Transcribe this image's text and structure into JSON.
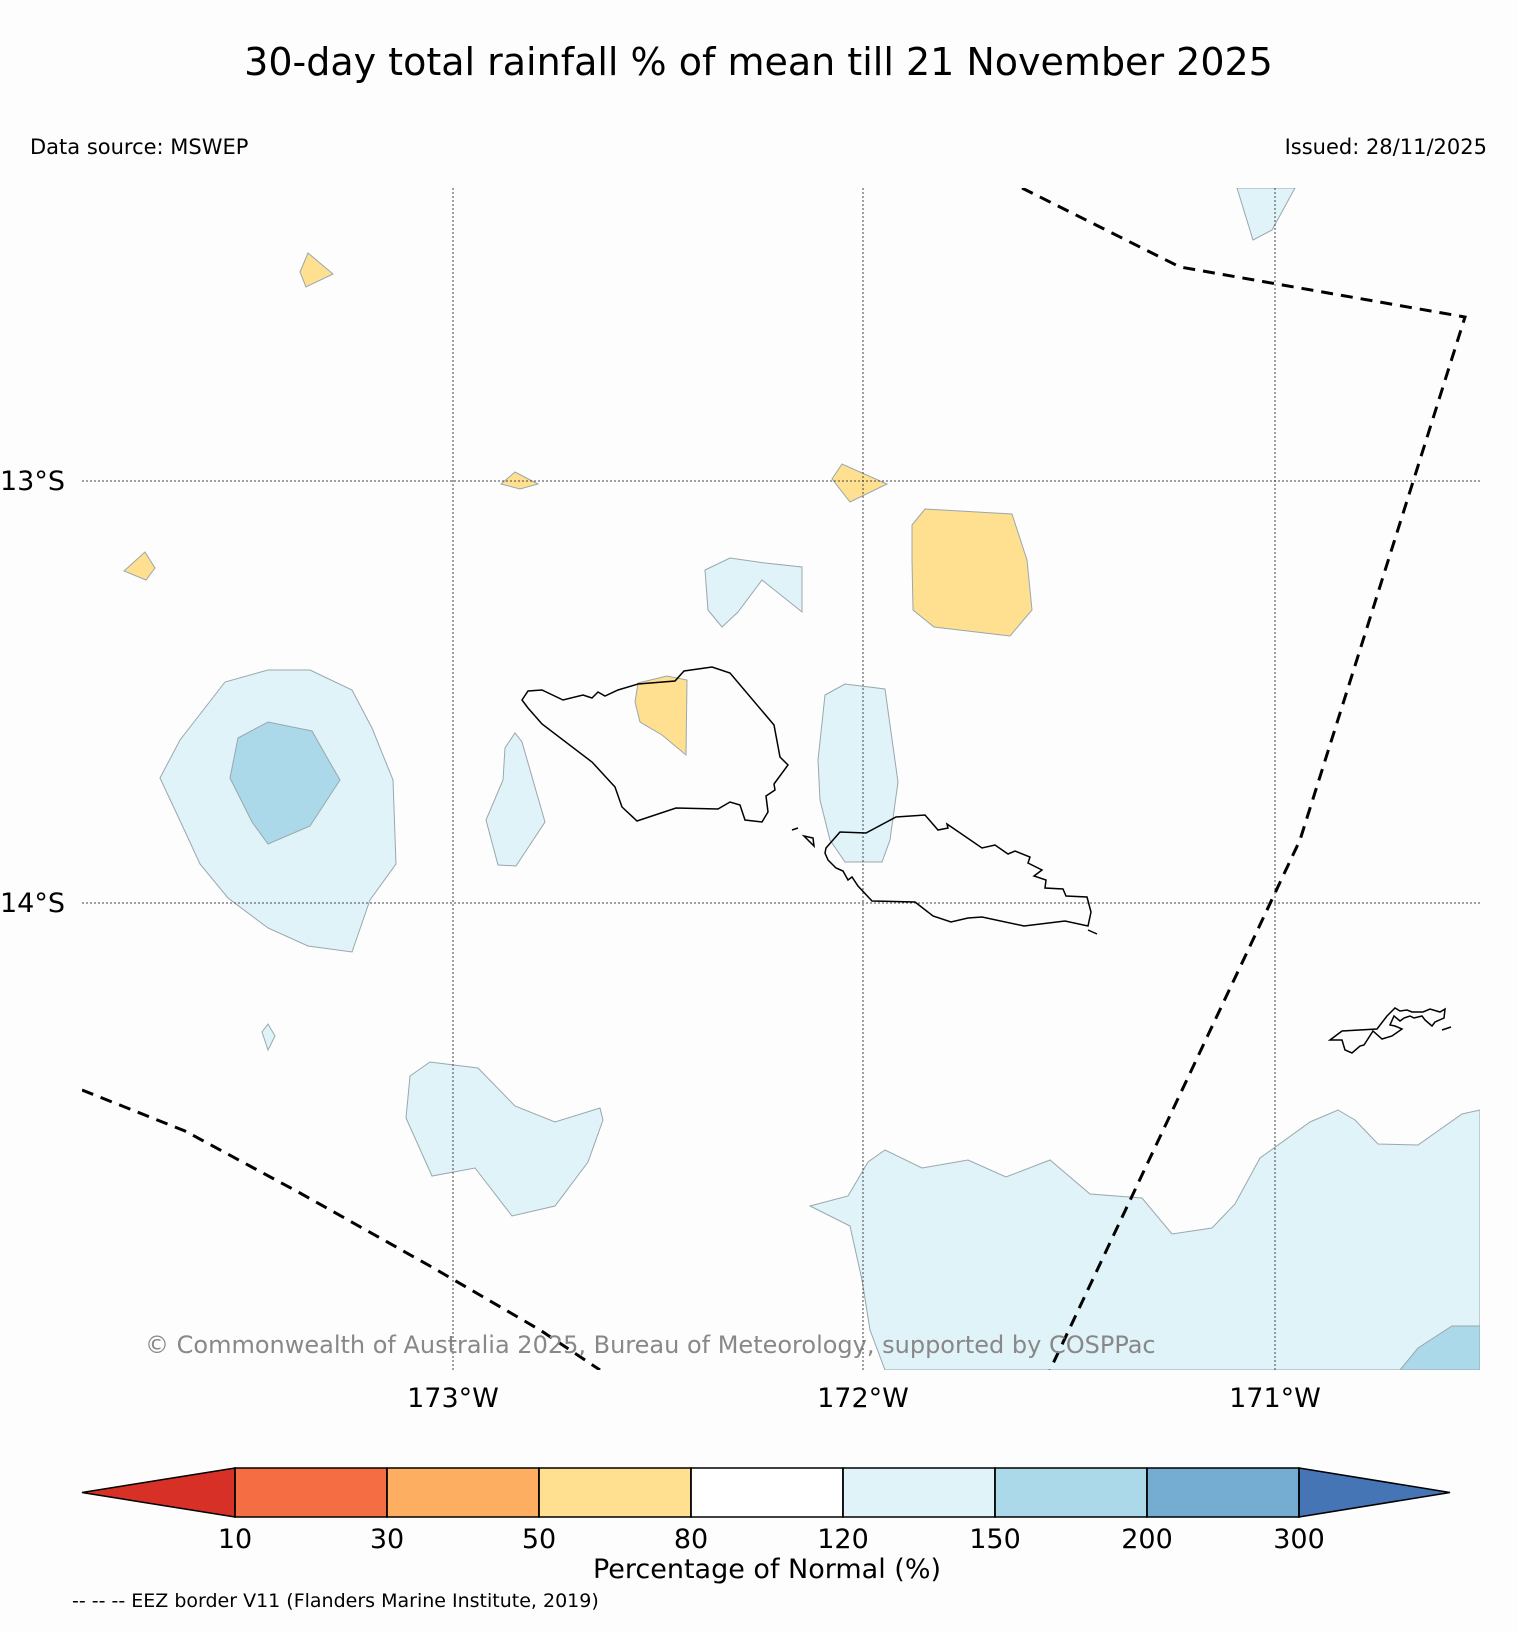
{
  "title": "30-day total rainfall % of mean till 21 November 2025",
  "source": "Data source: MSWEP",
  "issued": "Issued: 28/11/2025",
  "copyright": "© Commonwealth of Australia 2025, Bureau of Meteorology, supported by COSPPac",
  "lat_labels": [
    "13°S",
    "14°S"
  ],
  "lon_labels": [
    "173°W",
    "172°W",
    "171°W"
  ],
  "colorbar": {
    "label": "Percentage of Normal (%)",
    "ticks": [
      "10",
      "30",
      "50",
      "80",
      "120",
      "150",
      "200",
      "300"
    ],
    "colors": [
      "#d73027",
      "#f46d43",
      "#fdae61",
      "#fee090",
      "#ffffff",
      "#e0f3f8",
      "#abd9e9",
      "#74add1",
      "#4575b4"
    ]
  },
  "eez_note": "-- -- -- EEZ border V11 (Flanders Marine Institute, 2019)"
}
